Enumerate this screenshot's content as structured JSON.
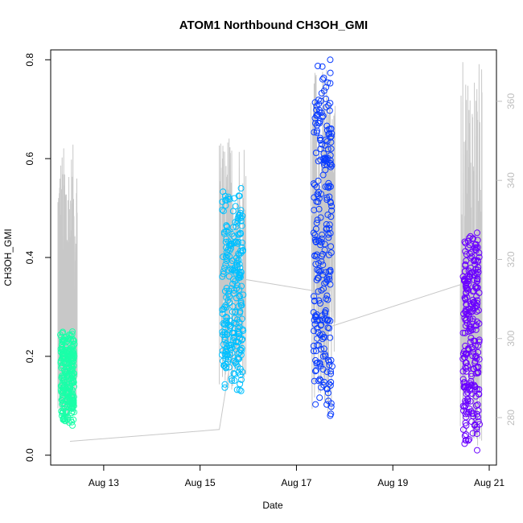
{
  "chart_data": {
    "type": "scatter",
    "title": "ATOM1 Northbound CH3OH_GMI",
    "xlabel": "Date",
    "ylabel": "CH3OH_GMI",
    "x_ticks": [
      {
        "day": 13,
        "label": "Aug 13"
      },
      {
        "day": 15,
        "label": "Aug 15"
      },
      {
        "day": 17,
        "label": "Aug 17"
      },
      {
        "day": 19,
        "label": "Aug 19"
      },
      {
        "day": 21,
        "label": "Aug 21"
      }
    ],
    "xlim": [
      11.9,
      21.15
    ],
    "ylim": [
      -0.02,
      0.82
    ],
    "y_ticks": [
      0.0,
      0.2,
      0.4,
      0.6,
      0.8
    ],
    "y2_ticks": [
      280,
      300,
      320,
      340,
      360
    ],
    "y2lim": [
      268,
      373
    ],
    "grid": false,
    "flights": [
      {
        "color": "#1affa8",
        "x_range": [
          12.1,
          12.4
        ],
        "y_range": [
          0.06,
          0.25
        ],
        "grey_max": 0.63
      },
      {
        "color": "#00c0ff",
        "x_range": [
          15.45,
          15.9
        ],
        "y_range": [
          0.13,
          0.54
        ],
        "grey_max": 0.65
      },
      {
        "color": "#0a3cff",
        "x_range": [
          17.35,
          17.75
        ],
        "y_range": [
          0.08,
          0.8
        ],
        "grey_max": 0.78
      },
      {
        "color": "#6a00ff",
        "x_range": [
          20.45,
          20.8
        ],
        "y_range": [
          0.01,
          0.45
        ],
        "grey_max": 0.8
      }
    ],
    "transit_line": [
      {
        "x": 12.3,
        "y2": 274
      },
      {
        "x": 15.4,
        "y2": 277
      },
      {
        "x": 15.9,
        "y2": 315
      },
      {
        "x": 17.4,
        "y2": 312
      },
      {
        "x": 17.7,
        "y2": 303
      },
      {
        "x": 20.5,
        "y2": 314
      }
    ]
  }
}
